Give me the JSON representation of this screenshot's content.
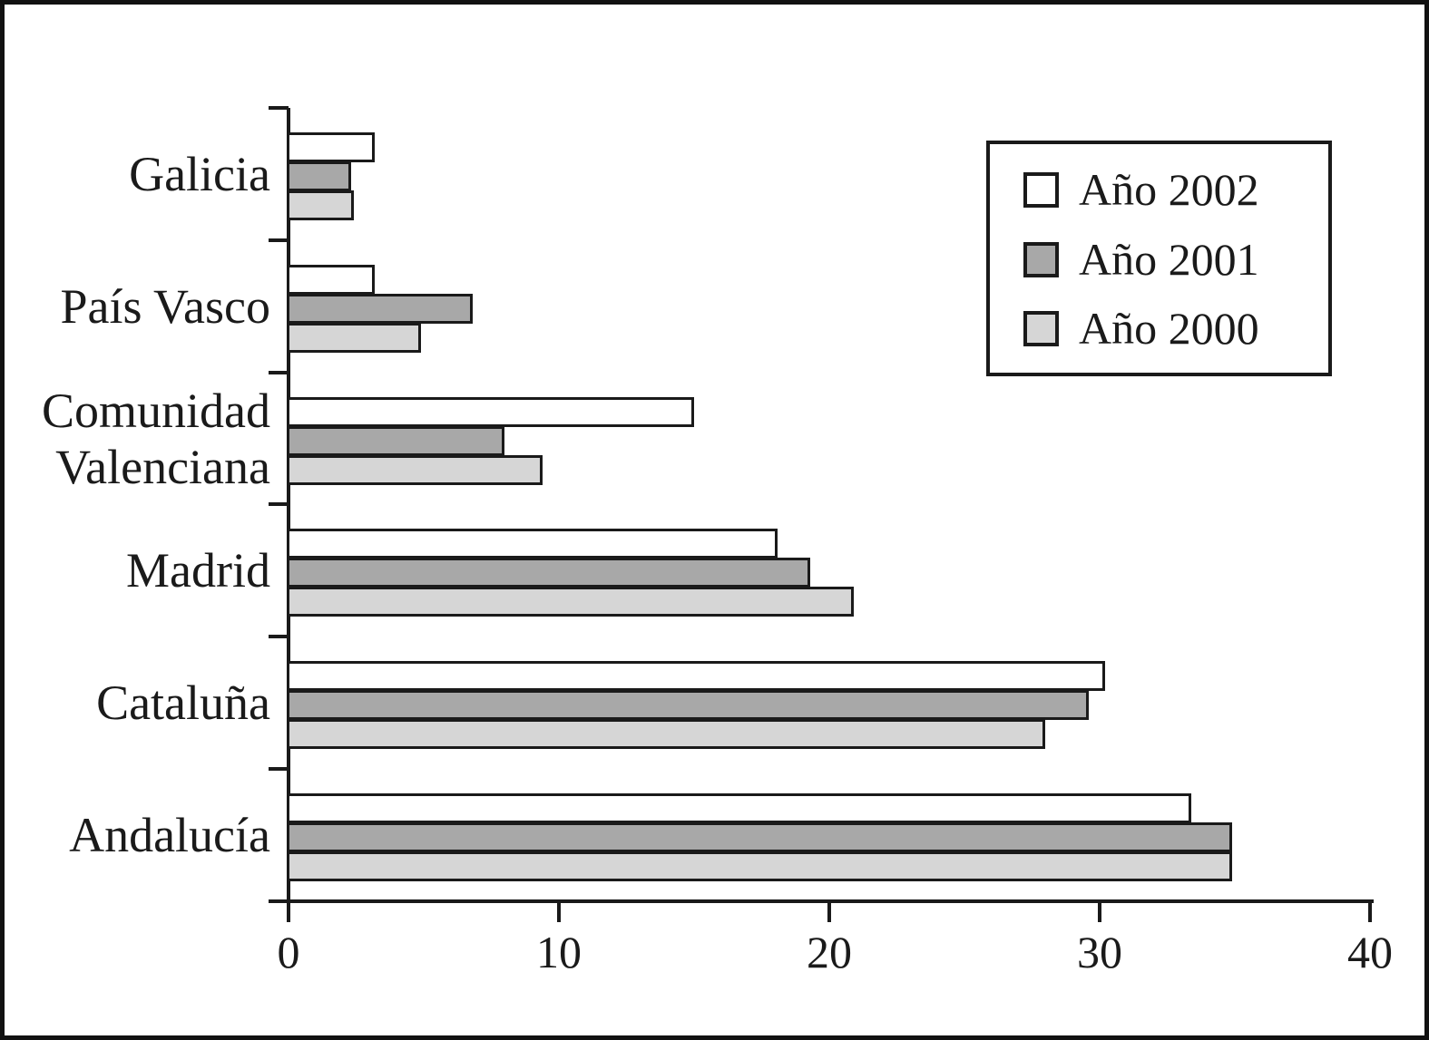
{
  "chart_data": {
    "type": "bar",
    "orientation": "horizontal",
    "title": "",
    "xlabel": "",
    "ylabel": "",
    "categories": [
      "Galicia",
      "País Vasco",
      "Comunidad\nValenciana",
      "Madrid",
      "Cataluña",
      "Andalucía"
    ],
    "series": [
      {
        "name": "Año 2002",
        "fill": "#ffffff",
        "values": [
          3.2,
          3.2,
          15.0,
          18.1,
          30.2,
          33.4
        ]
      },
      {
        "name": "Año 2001",
        "fill": "#a8a8a8",
        "values": [
          2.3,
          6.8,
          8.0,
          19.3,
          29.6,
          34.9
        ]
      },
      {
        "name": "Año 2000",
        "fill": "#d6d6d6",
        "values": [
          2.4,
          4.9,
          9.4,
          20.9,
          28.0,
          34.9
        ]
      }
    ],
    "x_ticks": [
      "0",
      "10",
      "20",
      "30",
      "40"
    ],
    "x_tick_values": [
      0,
      10,
      20,
      30,
      40
    ],
    "xlim": [
      0,
      40
    ],
    "grid": false,
    "legend_position": "top-right",
    "bar_outline_color": "#1a1a1a"
  }
}
